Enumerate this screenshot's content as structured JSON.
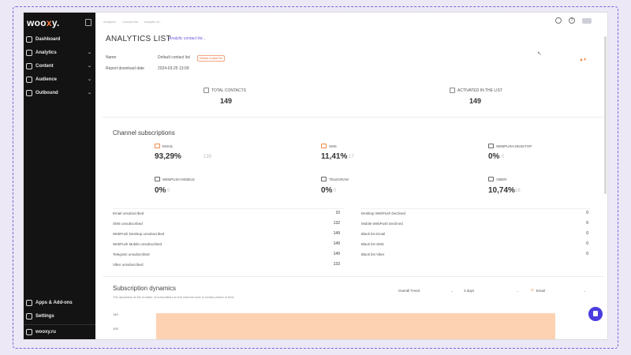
{
  "brand": {
    "logo_prefix": "woo",
    "logo_accent": "x",
    "logo_suffix": "y."
  },
  "sidebar": {
    "items": [
      {
        "label": "Dashboard",
        "has_chevron": false
      },
      {
        "label": "Analytics",
        "has_chevron": true
      },
      {
        "label": "Content",
        "has_chevron": true
      },
      {
        "label": "Audience",
        "has_chevron": true
      },
      {
        "label": "Outbound",
        "has_chevron": true
      }
    ],
    "bottom_items": [
      {
        "label": "Apps & Add-ons"
      },
      {
        "label": "Settings"
      },
      {
        "label": "wooxy.ru"
      }
    ]
  },
  "breadcrumbs": [
    "Analytics",
    "Contact list",
    "Analytic ch..."
  ],
  "page": {
    "title": "ANALYTICS LIST",
    "list_link": "Analytic contact list...",
    "name_label": "Name",
    "name_value": "Default contact list",
    "badge": "Default contact list",
    "report_label": "Report download date",
    "report_value": "2024-03-25 13:09"
  },
  "stats": {
    "total_contacts_label": "TOTAL CONTACTS",
    "total_contacts_value": "149",
    "activated_label": "ACTIVATED IN THE LIST",
    "activated_value": "149"
  },
  "channel_subscriptions": {
    "title": "Channel subscriptions",
    "channels": [
      {
        "name": "EMAIL",
        "percent": "93,29%",
        "count": "139"
      },
      {
        "name": "SMS",
        "percent": "11,41%",
        "count": "17"
      },
      {
        "name": "WEBPUSH DESKTOP",
        "percent": "0%",
        "count": "0"
      },
      {
        "name": "WEBPUSH MOBILE",
        "percent": "0%",
        "count": "0"
      },
      {
        "name": "TELEGRAM",
        "percent": "0%",
        "count": "0"
      },
      {
        "name": "VIBER",
        "percent": "10,74%",
        "count": "16"
      }
    ],
    "left_rows": [
      {
        "label": "Email unsubscribed",
        "value": "10"
      },
      {
        "label": "SMS unsubscribed",
        "value": "132"
      },
      {
        "label": "WebPush Desktop unsubscribed",
        "value": "149"
      },
      {
        "label": "WebPush Mobile unsubscribed",
        "value": "149"
      },
      {
        "label": "Telegram unsubscribed",
        "value": "149"
      },
      {
        "label": "Viber unsubscribed",
        "value": "133"
      }
    ],
    "right_rows": [
      {
        "label": "Desktop WebPush Declined",
        "value": "0"
      },
      {
        "label": "Mobile WebPush Declined",
        "value": "0"
      },
      {
        "label": "Black list Email",
        "value": "0"
      },
      {
        "label": "Black list SMS",
        "value": "0"
      },
      {
        "label": "Black list Viber",
        "value": "0"
      }
    ]
  },
  "subscription_dynamics": {
    "title": "Subscription dynamics",
    "subtitle": "The dynamics of the number of subscribers to the channel over a certain period of time",
    "selects": {
      "trend": "Overall Trend",
      "period": "3 days",
      "channel": "Email"
    },
    "y_ticks": [
      "140",
      "105"
    ]
  },
  "colors": {
    "accent": "#ff7a3d",
    "brand": "#4b3ce0",
    "sidebar": "#131313"
  }
}
